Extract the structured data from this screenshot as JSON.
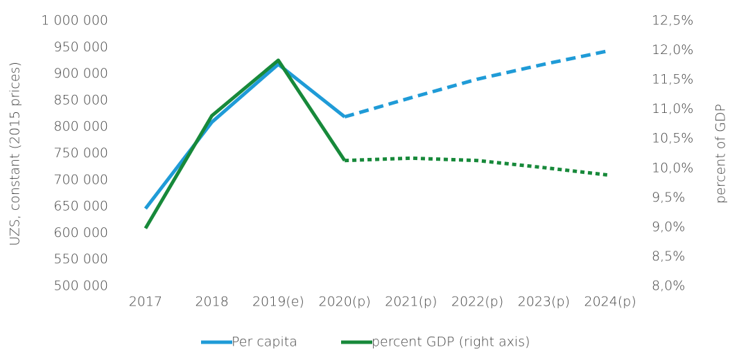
{
  "chart_data": {
    "type": "line",
    "y_axis_label": "UZS, constant (2015 prices)",
    "y2_axis_label": "percent of GDP",
    "categories": [
      "2017",
      "2018",
      "2019(e)",
      "2020(p)",
      "2021(p)",
      "2022(p)",
      "2023(p)",
      "2024(p)"
    ],
    "projected": [
      false,
      false,
      false,
      false,
      true,
      true,
      true,
      true
    ],
    "series": [
      {
        "name": "Per capita",
        "color": "#1f9bd7",
        "style": "dashed",
        "values": [
          646000,
          809000,
          918000,
          819000,
          855000,
          890000,
          918000,
          944000
        ]
      },
      {
        "name": "percent GDP (right axis)",
        "color": "#17893a",
        "style": "dotted",
        "axis": "y2",
        "values": [
          8.98,
          10.89,
          11.83,
          10.13,
          10.17,
          10.13,
          10.01,
          9.88
        ]
      }
    ],
    "ylim": [
      500000,
      1000000
    ],
    "yticks": [
      {
        "value": 500000,
        "label": "500 000"
      },
      {
        "value": 550000,
        "label": "550 000"
      },
      {
        "value": 600000,
        "label": "600 000"
      },
      {
        "value": 650000,
        "label": "650 000"
      },
      {
        "value": 700000,
        "label": "700 000"
      },
      {
        "value": 750000,
        "label": "750 000"
      },
      {
        "value": 800000,
        "label": "800 000"
      },
      {
        "value": 850000,
        "label": "850 000"
      },
      {
        "value": 900000,
        "label": "900 000"
      },
      {
        "value": 950000,
        "label": "950 000"
      },
      {
        "value": 1000000,
        "label": "1 000 000"
      }
    ],
    "y2lim": [
      8.0,
      12.5
    ],
    "y2ticks": [
      {
        "value": 8.0,
        "label": "8,0%"
      },
      {
        "value": 8.5,
        "label": "8,5%"
      },
      {
        "value": 9.0,
        "label": "9,0%"
      },
      {
        "value": 9.5,
        "label": "9,5%"
      },
      {
        "value": 10.0,
        "label": "10,0%"
      },
      {
        "value": 10.5,
        "label": "10,5%"
      },
      {
        "value": 11.0,
        "label": "11,0%"
      },
      {
        "value": 11.5,
        "label": "11,5%"
      },
      {
        "value": 12.0,
        "label": "12,0%"
      },
      {
        "value": 12.5,
        "label": "12,5%"
      }
    ],
    "legend": "bottom"
  }
}
